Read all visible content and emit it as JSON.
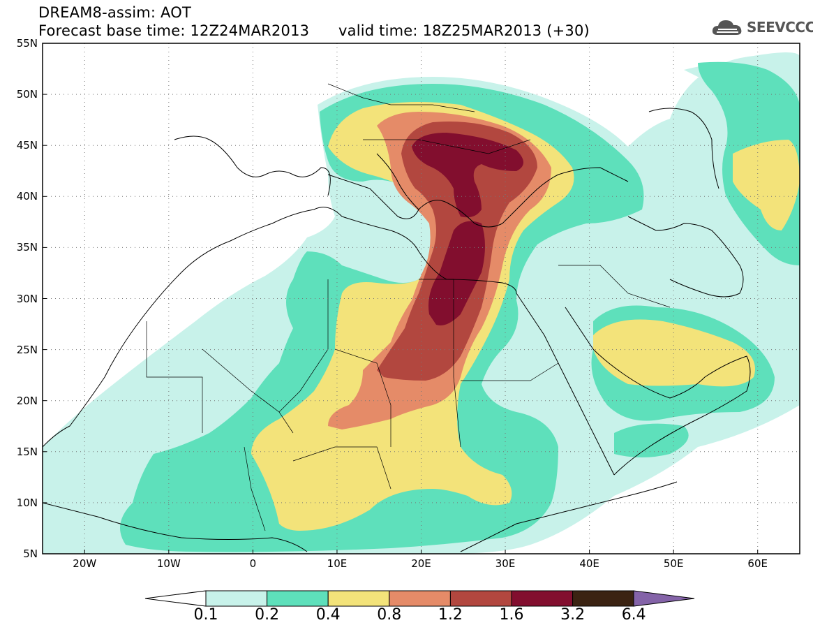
{
  "header": {
    "model_line": "DREAM8-assim: AOT",
    "base_time": "Forecast base time: 12Z24MAR2013",
    "valid_time": "valid time: 18Z25MAR2013 (+30)",
    "logo_text": "SEEVCCC"
  },
  "axes": {
    "lat_labels": [
      "55N",
      "50N",
      "45N",
      "40N",
      "35N",
      "30N",
      "25N",
      "20N",
      "15N",
      "10N",
      "5N"
    ],
    "lat_values": [
      55,
      50,
      45,
      40,
      35,
      30,
      25,
      20,
      15,
      10,
      5
    ],
    "lon_labels": [
      "20W",
      "10W",
      "0",
      "10E",
      "20E",
      "30E",
      "40E",
      "50E",
      "60E"
    ],
    "lon_values": [
      -20,
      -10,
      0,
      10,
      20,
      30,
      40,
      50,
      60
    ],
    "lon_range": [
      -25,
      65
    ],
    "lat_range": [
      5,
      55
    ],
    "grid": "dotted"
  },
  "legend": {
    "labels": [
      "0.1",
      "0.2",
      "0.4",
      "0.8",
      "1.2",
      "1.6",
      "3.2",
      "6.4"
    ],
    "colors": [
      "#ffffff",
      "#c8f2ea",
      "#5ee0bb",
      "#f3e37a",
      "#e58b68",
      "#b2473f",
      "#820e2e",
      "#3b2312",
      "#8463a8"
    ]
  },
  "icons": {
    "logo": "cloud-logo-icon"
  }
}
